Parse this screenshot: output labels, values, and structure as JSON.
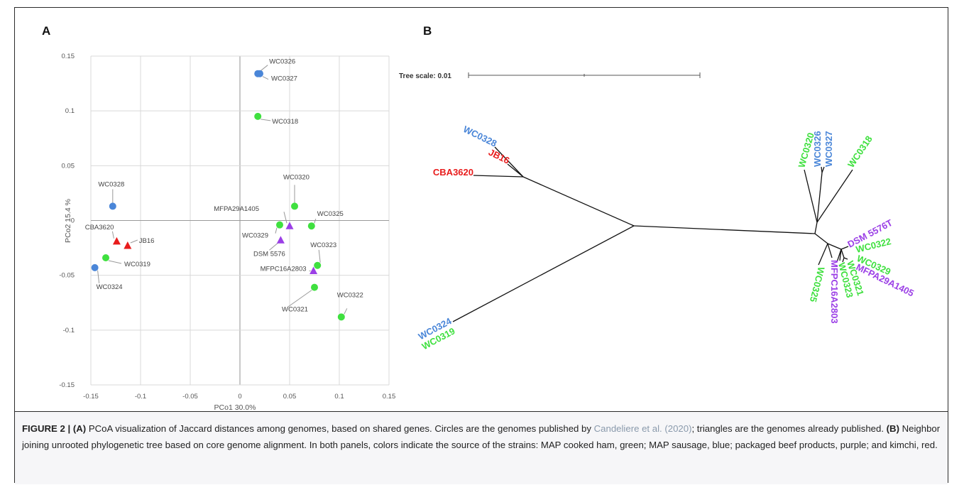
{
  "panel_a": {
    "letter": "A",
    "chart_data": {
      "type": "scatter",
      "xlabel": "PCo1 30.0%",
      "ylabel": "PCo2 15.4 %",
      "xlim": [
        -0.15,
        0.15
      ],
      "ylim": [
        -0.15,
        0.15
      ],
      "xticks": [
        "-0.15",
        "-0.1",
        "-0.05",
        "0",
        "0.05",
        "0.1",
        "0.15"
      ],
      "yticks": [
        "0.15",
        "0.1",
        "0.05",
        "0",
        "-0.05",
        "-0.1",
        "-0.15"
      ],
      "grid": true,
      "colors": {
        "green": "#3fe03f",
        "blue": "#4a86d8",
        "purple": "#9b3fe6",
        "red": "#e81c1c"
      },
      "points": [
        {
          "label": "WC0326",
          "x": 0.018,
          "y": 0.134,
          "color": "blue",
          "shape": "circle"
        },
        {
          "label": "WC0327",
          "x": 0.02,
          "y": 0.134,
          "color": "blue",
          "shape": "circle"
        },
        {
          "label": "WC0318",
          "x": 0.018,
          "y": 0.095,
          "color": "green",
          "shape": "circle"
        },
        {
          "label": "WC0328",
          "x": -0.128,
          "y": 0.013,
          "color": "blue",
          "shape": "circle"
        },
        {
          "label": "CBA3620",
          "x": -0.124,
          "y": -0.019,
          "color": "red",
          "shape": "triangle"
        },
        {
          "label": "JB16",
          "x": -0.113,
          "y": -0.023,
          "color": "red",
          "shape": "triangle"
        },
        {
          "label": "WC0319",
          "x": -0.135,
          "y": -0.034,
          "color": "green",
          "shape": "circle"
        },
        {
          "label": "WC0324",
          "x": -0.146,
          "y": -0.043,
          "color": "blue",
          "shape": "circle"
        },
        {
          "label": "WC0320",
          "x": 0.055,
          "y": 0.013,
          "color": "green",
          "shape": "circle"
        },
        {
          "label": "MFPA29A1405",
          "x": 0.05,
          "y": -0.005,
          "color": "purple",
          "shape": "triangle"
        },
        {
          "label": "WC0325",
          "x": 0.072,
          "y": -0.005,
          "color": "green",
          "shape": "circle"
        },
        {
          "label": "WC0329",
          "x": 0.04,
          "y": -0.004,
          "color": "green",
          "shape": "circle"
        },
        {
          "label": "DSM 5576",
          "x": 0.041,
          "y": -0.018,
          "color": "purple",
          "shape": "triangle"
        },
        {
          "label": "WC0323",
          "x": 0.078,
          "y": -0.041,
          "color": "green",
          "shape": "circle"
        },
        {
          "label": "MFPC16A2803",
          "x": 0.074,
          "y": -0.046,
          "color": "purple",
          "shape": "triangle"
        },
        {
          "label": "WC0321",
          "x": 0.075,
          "y": -0.061,
          "color": "green",
          "shape": "circle"
        },
        {
          "label": "WC0322",
          "x": 0.102,
          "y": -0.088,
          "color": "green",
          "shape": "circle"
        }
      ]
    }
  },
  "panel_b": {
    "letter": "B",
    "tree_scale_label": "Tree scale: 0.01",
    "colors": {
      "green": "#3fe03f",
      "blue": "#4a86d8",
      "purple": "#9b3fe6",
      "red": "#e81c1c"
    },
    "tips": [
      {
        "label": "WC0328",
        "color": "blue"
      },
      {
        "label": "JB16",
        "color": "red"
      },
      {
        "label": "CBA3620",
        "color": "red"
      },
      {
        "label": "WC0324",
        "color": "blue"
      },
      {
        "label": "WC0319",
        "color": "green"
      },
      {
        "label": "WC0320",
        "color": "green"
      },
      {
        "label": "WC0326",
        "color": "blue"
      },
      {
        "label": "WC0327",
        "color": "blue"
      },
      {
        "label": "WC0318",
        "color": "green"
      },
      {
        "label": "DSM 5576T",
        "color": "purple"
      },
      {
        "label": "WC0322",
        "color": "green"
      },
      {
        "label": "WC0329",
        "color": "green"
      },
      {
        "label": "MFPA29A1405",
        "color": "purple"
      },
      {
        "label": "WC0321",
        "color": "green"
      },
      {
        "label": "WC0323",
        "color": "green"
      },
      {
        "label": "MFPC16A2803",
        "color": "purple"
      },
      {
        "label": "WC0325",
        "color": "green"
      }
    ]
  },
  "caption": {
    "figure_label": "FIGURE 2 | ",
    "a_marker": "(A)",
    "text_1": " PCoA visualization of Jaccard distances among genomes, based on shared genes. Circles are the genomes published by ",
    "citation": "Candeliere et al. (2020)",
    "text_2": "; triangles are the genomes already published. ",
    "b_marker": "(B)",
    "text_3": " Neighbor joining unrooted phylogenetic tree based on core genome alignment. In both panels, colors indicate the source of the strains: MAP cooked ham, green; MAP sausage, blue; packaged beef products, purple; and kimchi, red."
  }
}
